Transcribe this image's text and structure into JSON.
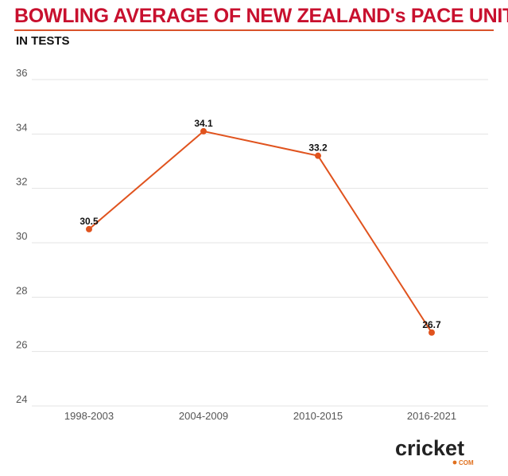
{
  "header": {
    "title": "BOWLING AVERAGE OF NEW ZEALAND's PACE UNIT",
    "subtitle": "IN TESTS"
  },
  "logo": {
    "name": "cricket.com",
    "text": "cricket",
    "suffix": "COM"
  },
  "colors": {
    "title": "#c8102e",
    "line": "#e0531e",
    "rule": "#d9532b"
  },
  "chart_data": {
    "type": "line",
    "title": "BOWLING AVERAGE OF NEW ZEALAND's PACE UNIT",
    "subtitle": "IN TESTS",
    "categories": [
      "1998-2003",
      "2004-2009",
      "2010-2015",
      "2016-2021"
    ],
    "values": [
      30.5,
      34.1,
      33.2,
      26.7
    ],
    "data_labels": [
      "30.5",
      "34.1",
      "33.2",
      "26.7"
    ],
    "ylim": [
      24,
      36
    ],
    "yticks": [
      24,
      26,
      28,
      30,
      32,
      34,
      36
    ],
    "ytick_labels": [
      "24",
      "26",
      "28",
      "30",
      "32",
      "34",
      "36"
    ],
    "grid": true,
    "legend": "none"
  }
}
